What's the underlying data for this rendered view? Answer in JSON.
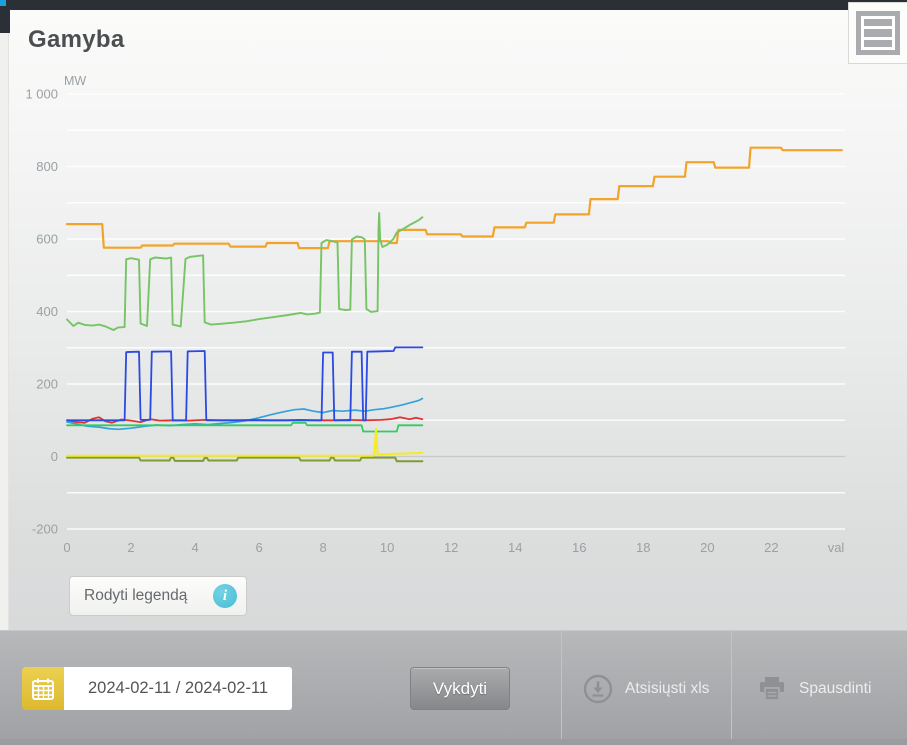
{
  "header": {
    "title": "Gamyba"
  },
  "legend_button": {
    "label": "Rodyti legendą",
    "info_glyph": "i"
  },
  "toolbar": {
    "date_value": "2024-02-11 / 2024-02-11",
    "run_label": "Vykdyti",
    "download_label": "Atsisiųsti xls",
    "print_label": "Spausdinti"
  },
  "colors": {
    "topbar": "#2b3036",
    "accent_blue": "#1ba2de",
    "calendar_yellow": "#ddb92f",
    "info_cyan": "#48bcd4"
  },
  "chart_data": {
    "type": "line",
    "title": "Gamyba",
    "xlabel": "val",
    "ylabel": "MW",
    "xlim": [
      0,
      24.3
    ],
    "ylim": [
      -200,
      1000
    ],
    "grid": "horizontal, every 100 MW",
    "legend": "hidden (toggle via Rodyti legendą button)",
    "x_ticks": [
      0,
      2,
      4,
      6,
      8,
      10,
      12,
      14,
      16,
      18,
      20,
      22
    ],
    "y_ticks": [
      {
        "value": 1000,
        "label": "1 000"
      },
      {
        "value": 800,
        "label": "800"
      },
      {
        "value": 600,
        "label": "600"
      },
      {
        "value": 400,
        "label": "400"
      },
      {
        "value": 200,
        "label": "200"
      },
      {
        "value": 0,
        "label": "0"
      },
      {
        "value": -200,
        "label": "-200"
      }
    ],
    "series": [
      {
        "name": "series-cyan",
        "color": "#36a2dc",
        "width": 1.7,
        "points": [
          [
            0,
            95
          ],
          [
            0.3,
            90
          ],
          [
            0.6,
            84
          ],
          [
            1,
            81
          ],
          [
            1.3,
            77
          ],
          [
            1.6,
            75
          ],
          [
            2,
            78
          ],
          [
            2.4,
            83
          ],
          [
            2.8,
            87
          ],
          [
            3.2,
            85
          ],
          [
            3.6,
            88
          ],
          [
            4,
            90
          ],
          [
            4.4,
            88
          ],
          [
            4.8,
            91
          ],
          [
            5.2,
            94
          ],
          [
            5.6,
            99
          ],
          [
            6,
            107
          ],
          [
            6.4,
            116
          ],
          [
            6.8,
            124
          ],
          [
            7.1,
            129
          ],
          [
            7.4,
            131
          ],
          [
            7.7,
            125
          ],
          [
            8,
            121
          ],
          [
            8.3,
            127
          ],
          [
            8.6,
            125
          ],
          [
            9,
            128
          ],
          [
            9.3,
            125
          ],
          [
            9.6,
            129
          ],
          [
            9.9,
            132
          ],
          [
            10.2,
            137
          ],
          [
            10.5,
            143
          ],
          [
            10.8,
            150
          ],
          [
            11,
            155
          ],
          [
            11.1,
            160
          ]
        ]
      },
      {
        "name": "series-red",
        "color": "#e03434",
        "width": 1.8,
        "points": [
          [
            0,
            100
          ],
          [
            0.3,
            95
          ],
          [
            0.55,
            93
          ],
          [
            0.8,
            104
          ],
          [
            1,
            108
          ],
          [
            1.2,
            97
          ],
          [
            1.4,
            93
          ],
          [
            1.7,
            102
          ],
          [
            2,
            99
          ],
          [
            2.3,
            95
          ],
          [
            2.6,
            103
          ],
          [
            2.9,
            99
          ],
          [
            3.3,
            100
          ],
          [
            3.8,
            99
          ],
          [
            4.3,
            101
          ],
          [
            4.8,
            100
          ],
          [
            5.3,
            100
          ],
          [
            5.8,
            101
          ],
          [
            6.3,
            100
          ],
          [
            6.8,
            100
          ],
          [
            7.3,
            101
          ],
          [
            7.8,
            100
          ],
          [
            8.3,
            100
          ],
          [
            8.8,
            101
          ],
          [
            9.3,
            100
          ],
          [
            9.8,
            101
          ],
          [
            10.1,
            103
          ],
          [
            10.4,
            108
          ],
          [
            10.7,
            103
          ],
          [
            10.9,
            107
          ],
          [
            11.1,
            103
          ]
        ]
      },
      {
        "name": "series-green-flat",
        "color": "#2fce62",
        "width": 1.8,
        "points": [
          [
            0,
            86
          ],
          [
            7,
            86
          ],
          [
            7.05,
            93
          ],
          [
            7.45,
            93
          ],
          [
            7.5,
            86
          ],
          [
            9.2,
            86
          ],
          [
            9.25,
            69
          ],
          [
            10.3,
            69
          ],
          [
            10.35,
            86
          ],
          [
            11.1,
            86
          ]
        ]
      },
      {
        "name": "series-olive",
        "color": "#7e9c36",
        "width": 2,
        "points": [
          [
            0,
            -3
          ],
          [
            2.25,
            -3
          ],
          [
            2.3,
            -11
          ],
          [
            3.2,
            -11
          ],
          [
            3.25,
            -3
          ],
          [
            3.32,
            -3
          ],
          [
            3.37,
            -12
          ],
          [
            4.25,
            -12
          ],
          [
            4.3,
            -4
          ],
          [
            4.37,
            -4
          ],
          [
            4.42,
            -11
          ],
          [
            5.3,
            -11
          ],
          [
            5.35,
            -3
          ],
          [
            7.25,
            -3
          ],
          [
            7.3,
            -11
          ],
          [
            8.2,
            -11
          ],
          [
            8.25,
            -3
          ],
          [
            8.32,
            -3
          ],
          [
            8.37,
            -11
          ],
          [
            9.15,
            -11
          ],
          [
            9.2,
            -3
          ],
          [
            10.25,
            -3
          ],
          [
            10.3,
            -13
          ],
          [
            11.1,
            -13
          ]
        ]
      },
      {
        "name": "series-yellow",
        "color": "#f6eb1f",
        "width": 2,
        "points": [
          [
            0,
            2
          ],
          [
            9.55,
            2
          ],
          [
            9.6,
            5
          ],
          [
            9.65,
            76
          ],
          [
            9.7,
            6
          ],
          [
            10,
            7
          ],
          [
            10.4,
            8
          ],
          [
            10.8,
            9
          ],
          [
            11.1,
            10
          ]
        ]
      },
      {
        "name": "series-blue",
        "color": "#2b49e3",
        "width": 1.8,
        "points": [
          [
            0,
            100
          ],
          [
            1.8,
            100
          ],
          [
            1.85,
            288
          ],
          [
            2.25,
            289
          ],
          [
            2.3,
            101
          ],
          [
            2.6,
            101
          ],
          [
            2.65,
            289
          ],
          [
            3.25,
            290
          ],
          [
            3.3,
            100
          ],
          [
            3.72,
            100
          ],
          [
            3.77,
            290
          ],
          [
            4.3,
            291
          ],
          [
            4.35,
            100
          ],
          [
            7.95,
            100
          ],
          [
            8,
            287
          ],
          [
            8.3,
            287
          ],
          [
            8.35,
            100
          ],
          [
            8.85,
            100
          ],
          [
            8.9,
            289
          ],
          [
            9.2,
            289
          ],
          [
            9.25,
            100
          ],
          [
            9.33,
            100
          ],
          [
            9.38,
            289
          ],
          [
            10.2,
            291
          ],
          [
            10.25,
            301
          ],
          [
            11.1,
            301
          ]
        ]
      },
      {
        "name": "series-orange",
        "color": "#f2a32b",
        "width": 2.2,
        "points": [
          [
            0,
            641
          ],
          [
            1.1,
            641
          ],
          [
            1.15,
            576
          ],
          [
            2.3,
            576
          ],
          [
            2.35,
            582
          ],
          [
            3.3,
            582
          ],
          [
            3.35,
            587
          ],
          [
            5.05,
            587
          ],
          [
            5.1,
            579
          ],
          [
            6.2,
            579
          ],
          [
            6.25,
            589
          ],
          [
            7.2,
            589
          ],
          [
            7.25,
            575
          ],
          [
            8.15,
            575
          ],
          [
            8.2,
            594
          ],
          [
            10.05,
            594
          ],
          [
            10.1,
            589
          ],
          [
            10.3,
            589
          ],
          [
            10.35,
            625
          ],
          [
            11.2,
            625
          ],
          [
            11.25,
            613
          ],
          [
            12.3,
            613
          ],
          [
            12.35,
            607
          ],
          [
            13.3,
            607
          ],
          [
            13.35,
            632
          ],
          [
            14.3,
            632
          ],
          [
            14.35,
            645
          ],
          [
            15.2,
            645
          ],
          [
            15.25,
            668
          ],
          [
            16.3,
            668
          ],
          [
            16.35,
            710
          ],
          [
            17.2,
            710
          ],
          [
            17.25,
            746
          ],
          [
            18.3,
            746
          ],
          [
            18.35,
            772
          ],
          [
            19.3,
            772
          ],
          [
            19.35,
            812
          ],
          [
            20.2,
            812
          ],
          [
            20.25,
            797
          ],
          [
            21.3,
            797
          ],
          [
            21.35,
            852
          ],
          [
            22.3,
            852
          ],
          [
            22.35,
            845
          ],
          [
            24.2,
            845
          ]
        ]
      },
      {
        "name": "series-green",
        "color": "#76c465",
        "width": 1.9,
        "points": [
          [
            0,
            378
          ],
          [
            0.2,
            360
          ],
          [
            0.35,
            369
          ],
          [
            0.55,
            363
          ],
          [
            0.8,
            361
          ],
          [
            1,
            364
          ],
          [
            1.2,
            359
          ],
          [
            1.45,
            349
          ],
          [
            1.6,
            356
          ],
          [
            1.8,
            357
          ],
          [
            1.85,
            544
          ],
          [
            2,
            547
          ],
          [
            2.25,
            543
          ],
          [
            2.3,
            367
          ],
          [
            2.5,
            360
          ],
          [
            2.6,
            544
          ],
          [
            2.75,
            549
          ],
          [
            3.1,
            546
          ],
          [
            3.25,
            549
          ],
          [
            3.3,
            364
          ],
          [
            3.55,
            359
          ],
          [
            3.7,
            545
          ],
          [
            3.85,
            551
          ],
          [
            4.25,
            555
          ],
          [
            4.3,
            370
          ],
          [
            4.5,
            364
          ],
          [
            4.8,
            366
          ],
          [
            5.2,
            369
          ],
          [
            5.6,
            373
          ],
          [
            6,
            379
          ],
          [
            6.4,
            384
          ],
          [
            6.8,
            389
          ],
          [
            7.1,
            393
          ],
          [
            7.3,
            396
          ],
          [
            7.5,
            392
          ],
          [
            7.75,
            394
          ],
          [
            7.9,
            397
          ],
          [
            7.95,
            589
          ],
          [
            8.1,
            597
          ],
          [
            8.3,
            594
          ],
          [
            8.45,
            590
          ],
          [
            8.5,
            407
          ],
          [
            8.7,
            404
          ],
          [
            8.85,
            405
          ],
          [
            8.9,
            599
          ],
          [
            9.05,
            607
          ],
          [
            9.2,
            605
          ],
          [
            9.3,
            599
          ],
          [
            9.35,
            407
          ],
          [
            9.5,
            399
          ],
          [
            9.7,
            401
          ],
          [
            9.73,
            625
          ],
          [
            9.75,
            672
          ],
          [
            9.78,
            600
          ],
          [
            9.85,
            578
          ],
          [
            10,
            584
          ],
          [
            10.1,
            592
          ],
          [
            10.2,
            601
          ],
          [
            10.3,
            618
          ],
          [
            10.45,
            625
          ],
          [
            10.6,
            633
          ],
          [
            10.75,
            641
          ],
          [
            10.9,
            648
          ],
          [
            11,
            653
          ],
          [
            11.1,
            660
          ]
        ]
      }
    ]
  }
}
